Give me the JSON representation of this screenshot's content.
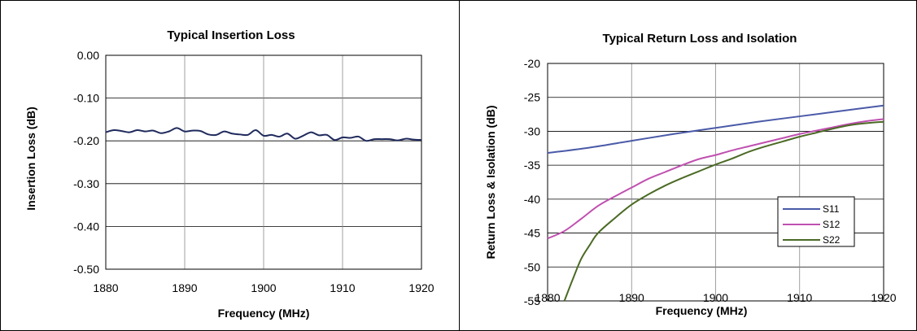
{
  "chart_data": [
    {
      "type": "line",
      "title": "Typical Insertion Loss",
      "xlabel": "Frequency (MHz)",
      "ylabel": "Insertion Loss (dB)",
      "xlim": [
        1880,
        1920
      ],
      "ylim": [
        -0.5,
        0
      ],
      "x_ticks": [
        "1880",
        "1890",
        "1900",
        "1910",
        "1920"
      ],
      "y_ticks": [
        "0.00",
        "-0.10",
        "-0.20",
        "-0.30",
        "-0.40",
        "-0.50"
      ],
      "grid": true,
      "legend": false,
      "series": [
        {
          "color": "#1f2a5c",
          "x": [
            1880,
            1881,
            1882,
            1883,
            1884,
            1885,
            1886,
            1887,
            1888,
            1889,
            1890,
            1891,
            1892,
            1893,
            1894,
            1895,
            1896,
            1897,
            1898,
            1899,
            1900,
            1901,
            1902,
            1903,
            1904,
            1905,
            1906,
            1907,
            1908,
            1909,
            1910,
            1911,
            1912,
            1913,
            1914,
            1915,
            1916,
            1917,
            1918,
            1919,
            1920
          ],
          "y": [
            -0.18,
            -0.175,
            -0.177,
            -0.18,
            -0.175,
            -0.178,
            -0.176,
            -0.182,
            -0.178,
            -0.17,
            -0.178,
            -0.176,
            -0.177,
            -0.185,
            -0.186,
            -0.178,
            -0.183,
            -0.185,
            -0.186,
            -0.175,
            -0.188,
            -0.186,
            -0.19,
            -0.183,
            -0.195,
            -0.188,
            -0.18,
            -0.187,
            -0.186,
            -0.198,
            -0.192,
            -0.193,
            -0.19,
            -0.2,
            -0.196,
            -0.196,
            -0.196,
            -0.199,
            -0.195,
            -0.197,
            -0.198
          ]
        }
      ]
    },
    {
      "type": "line",
      "title": "Typical Return Loss and Isolation",
      "xlabel": "Frequency (MHz)",
      "ylabel": "Return Loss & Isolation (dB)",
      "xlim": [
        1880,
        1920
      ],
      "ylim": [
        -55,
        -20
      ],
      "x_ticks": [
        "1880",
        "1890",
        "1900",
        "1910",
        "1920"
      ],
      "y_ticks": [
        "-20",
        "-25",
        "-30",
        "-35",
        "-40",
        "-45",
        "-50",
        "-55"
      ],
      "grid": true,
      "legend": "right-inside",
      "series": [
        {
          "name": "S11",
          "color": "#4a5aa8",
          "x": [
            1880,
            1885,
            1890,
            1895,
            1900,
            1905,
            1910,
            1915,
            1920
          ],
          "y": [
            -33.2,
            -32.4,
            -31.4,
            -30.4,
            -29.5,
            -28.6,
            -27.8,
            -27.0,
            -26.2
          ]
        },
        {
          "name": "S12",
          "color": "#c050b0",
          "x": [
            1880,
            1882,
            1884,
            1886,
            1888,
            1890,
            1892,
            1894,
            1896,
            1898,
            1900,
            1902,
            1904,
            1906,
            1908,
            1910,
            1912,
            1914,
            1916,
            1918,
            1920
          ],
          "y": [
            -45.8,
            -44.7,
            -42.9,
            -41.0,
            -39.6,
            -38.3,
            -37.0,
            -36.0,
            -35.0,
            -34.1,
            -33.5,
            -32.8,
            -32.2,
            -31.6,
            -31.0,
            -30.4,
            -29.9,
            -29.4,
            -28.9,
            -28.5,
            -28.2
          ]
        },
        {
          "name": "S22",
          "color": "#4b6a24",
          "x": [
            1882,
            1883,
            1884,
            1885,
            1886,
            1888,
            1890,
            1892,
            1894,
            1896,
            1898,
            1900,
            1902,
            1904,
            1906,
            1908,
            1910,
            1912,
            1914,
            1916,
            1918,
            1920
          ],
          "y": [
            -55.0,
            -51.8,
            -48.8,
            -46.8,
            -45.0,
            -42.8,
            -40.8,
            -39.3,
            -38.0,
            -36.9,
            -35.9,
            -34.9,
            -34.0,
            -33.0,
            -32.2,
            -31.5,
            -30.8,
            -30.2,
            -29.6,
            -29.1,
            -28.8,
            -28.6
          ]
        }
      ]
    }
  ]
}
